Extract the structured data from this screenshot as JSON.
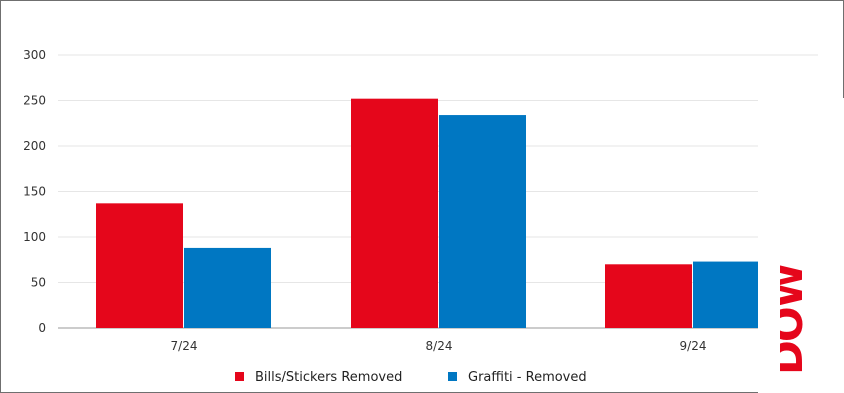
{
  "chart_data": {
    "type": "bar",
    "categories": [
      "7/24",
      "8/24",
      "9/24"
    ],
    "series": [
      {
        "name": "Bills/Stickers Removed",
        "values": [
          137,
          252,
          70
        ],
        "color": "#E5061B"
      },
      {
        "name": "Graffiti - Removed",
        "values": [
          88,
          234,
          73
        ],
        "color": "#0077C2"
      }
    ],
    "yticks": [
      "0",
      "50",
      "100",
      "150",
      "200",
      "250",
      "300"
    ],
    "ylim": [
      0,
      300
    ],
    "grid": true,
    "legend_position": "bottom",
    "title": "",
    "xlabel": "",
    "ylabel": ""
  },
  "overlay_text": "DOW"
}
